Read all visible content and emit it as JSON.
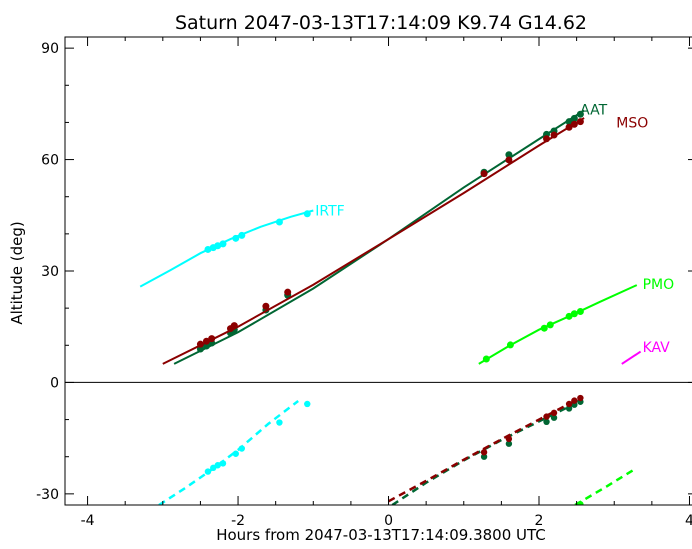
{
  "chart_data": {
    "type": "line",
    "title": "Saturn 2047-03-13T17:14:09  K9.74  G14.62",
    "xlabel": "Hours from 2047-03-13T17:14:09.3800 UTC",
    "ylabel": "Altitude (deg)",
    "xlim": [
      -4.3,
      4.1
    ],
    "ylim": [
      -33,
      93
    ],
    "xticks": [
      -4,
      -2,
      0,
      2,
      4
    ],
    "yticks": [
      -30,
      0,
      30,
      60,
      90
    ],
    "grid": false,
    "horizon_line": 0,
    "series": [
      {
        "name": "IRTF",
        "color": "#00ffff",
        "curve": [
          [
            -3.3,
            25.8
          ],
          [
            -2.9,
            30.2
          ],
          [
            -2.5,
            34.8
          ],
          [
            -2.1,
            38.6
          ],
          [
            -1.7,
            41.9
          ],
          [
            -1.3,
            44.6
          ],
          [
            -1.0,
            46.3
          ]
        ],
        "points": [
          [
            -2.4,
            35.8
          ],
          [
            -2.33,
            36.3
          ],
          [
            -2.27,
            36.8
          ],
          [
            -2.2,
            37.3
          ],
          [
            -2.03,
            38.8
          ],
          [
            -1.95,
            39.6
          ],
          [
            -1.45,
            43.2
          ],
          [
            -1.08,
            45.4
          ]
        ],
        "below": [
          [
            -3.05,
            -33.0
          ],
          [
            -2.7,
            -28.4
          ],
          [
            -2.4,
            -24.2
          ],
          [
            -2.0,
            -18.2
          ],
          [
            -1.6,
            -11.2
          ],
          [
            -1.2,
            -5.0
          ]
        ],
        "below_points": [
          [
            -2.4,
            -24.0
          ],
          [
            -2.33,
            -23.0
          ],
          [
            -2.27,
            -22.3
          ],
          [
            -2.2,
            -21.8
          ],
          [
            -2.03,
            -19.2
          ],
          [
            -1.95,
            -17.8
          ],
          [
            -1.45,
            -10.8
          ],
          [
            -1.08,
            -5.8
          ]
        ],
        "label_pos": [
          -1.0,
          46.3
        ]
      },
      {
        "name": "AAT",
        "color": "#006633",
        "curve": [
          [
            -2.85,
            5.0
          ],
          [
            -2.0,
            13.5
          ],
          [
            -1.0,
            25.3
          ],
          [
            0.0,
            38.6
          ],
          [
            1.0,
            52.5
          ],
          [
            2.0,
            65.5
          ],
          [
            2.6,
            73.2
          ]
        ],
        "points": [
          [
            -2.5,
            9.0
          ],
          [
            -2.42,
            9.8
          ],
          [
            -2.35,
            10.6
          ],
          [
            -2.1,
            13.3
          ],
          [
            -2.05,
            14.2
          ],
          [
            -1.63,
            19.5
          ],
          [
            -1.34,
            23.5
          ],
          [
            1.27,
            56.6
          ],
          [
            1.6,
            61.3
          ],
          [
            2.1,
            66.8
          ],
          [
            2.2,
            67.7
          ],
          [
            2.4,
            70.2
          ],
          [
            2.47,
            71.1
          ],
          [
            2.55,
            72.2
          ]
        ],
        "below": [
          [
            0.05,
            -33.0
          ],
          [
            0.5,
            -27.0
          ],
          [
            1.0,
            -21.0
          ],
          [
            1.5,
            -15.5
          ],
          [
            2.0,
            -10.5
          ],
          [
            2.5,
            -5.5
          ]
        ],
        "below_points": [
          [
            1.27,
            -20.0
          ],
          [
            1.6,
            -16.5
          ],
          [
            2.1,
            -10.6
          ],
          [
            2.2,
            -9.5
          ],
          [
            2.4,
            -7.0
          ],
          [
            2.47,
            -6.0
          ],
          [
            2.55,
            -5.2
          ]
        ],
        "label_pos": [
          2.52,
          73.5
        ]
      },
      {
        "name": "MSO",
        "color": "#8b0000",
        "curve": [
          [
            -3.0,
            5.0
          ],
          [
            -2.0,
            15.0
          ],
          [
            -1.0,
            26.3
          ],
          [
            0.0,
            38.6
          ],
          [
            1.0,
            51.0
          ],
          [
            2.0,
            63.8
          ],
          [
            2.6,
            71.2
          ]
        ],
        "points": [
          [
            -2.5,
            10.3
          ],
          [
            -2.42,
            11.1
          ],
          [
            -2.35,
            11.8
          ],
          [
            -2.1,
            14.5
          ],
          [
            -2.05,
            15.3
          ],
          [
            -1.63,
            20.5
          ],
          [
            -1.34,
            24.3
          ],
          [
            1.27,
            56.2
          ],
          [
            1.6,
            59.9
          ],
          [
            2.1,
            65.6
          ],
          [
            2.2,
            66.6
          ],
          [
            2.4,
            68.7
          ],
          [
            2.47,
            69.5
          ],
          [
            2.55,
            70.2
          ]
        ],
        "below": [
          [
            0.0,
            -32.0
          ],
          [
            0.5,
            -26.5
          ],
          [
            1.0,
            -20.8
          ],
          [
            1.5,
            -15.3
          ],
          [
            2.0,
            -10.0
          ],
          [
            2.55,
            -4.2
          ]
        ],
        "below_points": [
          [
            1.27,
            -18.8
          ],
          [
            1.6,
            -15.2
          ],
          [
            2.1,
            -9.2
          ],
          [
            2.2,
            -8.2
          ],
          [
            2.4,
            -5.8
          ],
          [
            2.47,
            -4.9
          ],
          [
            2.55,
            -4.2
          ]
        ],
        "label_pos": [
          3.0,
          70.0
        ]
      },
      {
        "name": "PMO",
        "color": "#00ff00",
        "curve": [
          [
            1.2,
            5.0
          ],
          [
            1.6,
            9.8
          ],
          [
            2.0,
            14.2
          ],
          [
            2.4,
            17.8
          ],
          [
            2.8,
            21.6
          ],
          [
            3.3,
            26.2
          ]
        ],
        "points": [
          [
            1.3,
            6.3
          ],
          [
            1.62,
            10.1
          ],
          [
            2.07,
            14.6
          ],
          [
            2.15,
            15.5
          ],
          [
            2.4,
            17.8
          ],
          [
            2.47,
            18.5
          ],
          [
            2.55,
            19.1
          ]
        ],
        "below": [
          [
            2.48,
            -33.0
          ],
          [
            2.9,
            -28.0
          ],
          [
            3.3,
            -23.0
          ]
        ],
        "below_points": [
          [
            2.55,
            -32.8
          ]
        ],
        "label_pos": [
          3.35,
          26.5
        ]
      },
      {
        "name": "KAV",
        "color": "#ff00ff",
        "curve": [
          [
            3.1,
            5.0
          ],
          [
            3.35,
            8.3
          ]
        ],
        "points": [],
        "below": [],
        "below_points": [],
        "label_pos": [
          3.35,
          9.5
        ]
      }
    ]
  }
}
